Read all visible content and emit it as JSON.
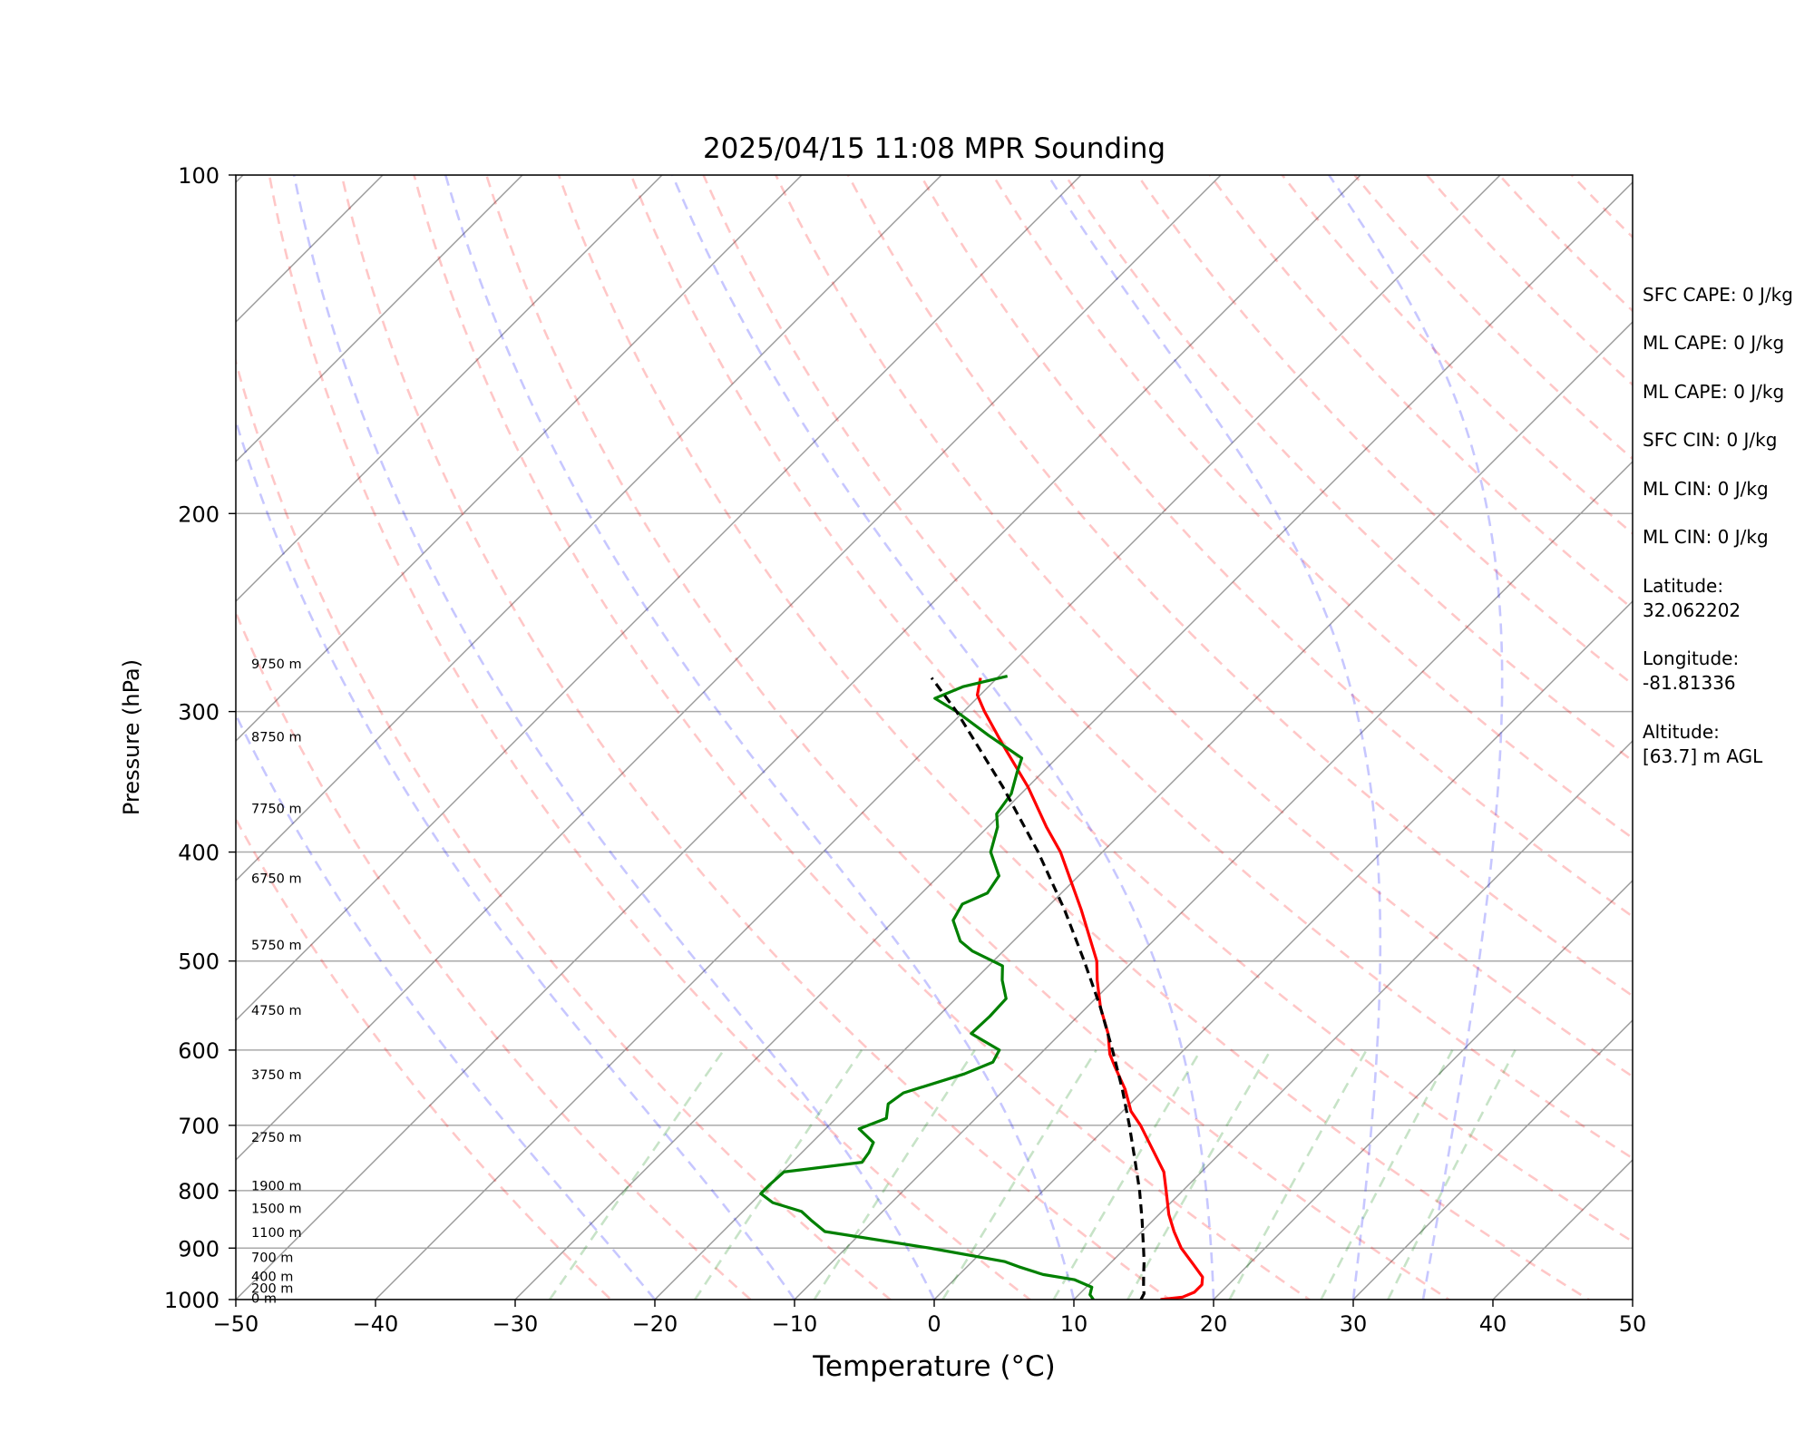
{
  "chart_data": {
    "type": "line",
    "subtype": "skew-t log-p",
    "title": "2025/04/15 11:08 MPR Sounding",
    "xlabel": "Temperature (°C)",
    "ylabel": "Pressure (hPa)",
    "xlim": [
      -50,
      50
    ],
    "ylim": [
      1000,
      100
    ],
    "yscale": "log",
    "x_ticks": [
      "−50",
      "−40",
      "−30",
      "−20",
      "−10",
      "0",
      "10",
      "20",
      "30",
      "40",
      "50"
    ],
    "y_ticks": [
      "100",
      "200",
      "300",
      "400",
      "500",
      "600",
      "700",
      "800",
      "900",
      "1000"
    ],
    "height_labels": [
      {
        "p": 997,
        "label": "0 m"
      },
      {
        "p": 977,
        "label": "200 m"
      },
      {
        "p": 954,
        "label": "400 m"
      },
      {
        "p": 917,
        "label": "700 m"
      },
      {
        "p": 872,
        "label": "1100 m"
      },
      {
        "p": 830,
        "label": "1500 m"
      },
      {
        "p": 792,
        "label": "1900 m"
      },
      {
        "p": 717,
        "label": "2750 m"
      },
      {
        "p": 631,
        "label": "3750 m"
      },
      {
        "p": 553,
        "label": "4750 m"
      },
      {
        "p": 484,
        "label": "5750 m"
      },
      {
        "p": 422,
        "label": "6750 m"
      },
      {
        "p": 366,
        "label": "7750 m"
      },
      {
        "p": 316,
        "label": "8750 m"
      },
      {
        "p": 272,
        "label": "9750 m"
      }
    ],
    "series": [
      {
        "key": "temperature",
        "color": "#ff0000",
        "points": [
          [
            1000,
            16.2
          ],
          [
            995,
            17.6
          ],
          [
            985,
            18.1
          ],
          [
            970,
            18.1
          ],
          [
            955,
            17.6
          ],
          [
            930,
            16.0
          ],
          [
            900,
            14.0
          ],
          [
            870,
            12.3
          ],
          [
            840,
            10.7
          ],
          [
            800,
            8.8
          ],
          [
            770,
            7.3
          ],
          [
            700,
            2.3
          ],
          [
            680,
            0.6
          ],
          [
            650,
            -1.4
          ],
          [
            620,
            -3.8
          ],
          [
            605,
            -5.0
          ],
          [
            580,
            -6.6
          ],
          [
            550,
            -9.0
          ],
          [
            520,
            -11.2
          ],
          [
            500,
            -12.6
          ],
          [
            450,
            -17.4
          ],
          [
            400,
            -23.0
          ],
          [
            380,
            -25.8
          ],
          [
            350,
            -30.0
          ],
          [
            320,
            -35.0
          ],
          [
            300,
            -38.5
          ],
          [
            290,
            -40.2
          ],
          [
            280,
            -41.2
          ]
        ]
      },
      {
        "key": "dewpoint",
        "color": "#008000",
        "points": [
          [
            1000,
            11.4
          ],
          [
            990,
            10.8
          ],
          [
            975,
            10.4
          ],
          [
            960,
            8.6
          ],
          [
            950,
            6.0
          ],
          [
            935,
            3.7
          ],
          [
            925,
            2.3
          ],
          [
            900,
            -4.0
          ],
          [
            870,
            -12.7
          ],
          [
            850,
            -14.5
          ],
          [
            835,
            -15.8
          ],
          [
            820,
            -18.5
          ],
          [
            805,
            -20.0
          ],
          [
            790,
            -20.0
          ],
          [
            770,
            -19.9
          ],
          [
            755,
            -15.0
          ],
          [
            740,
            -15.2
          ],
          [
            725,
            -15.6
          ],
          [
            705,
            -17.6
          ],
          [
            690,
            -16.4
          ],
          [
            670,
            -17.3
          ],
          [
            655,
            -17.0
          ],
          [
            630,
            -14.0
          ],
          [
            615,
            -12.8
          ],
          [
            600,
            -13.2
          ],
          [
            580,
            -16.4
          ],
          [
            560,
            -16.3
          ],
          [
            540,
            -16.4
          ],
          [
            520,
            -18.0
          ],
          [
            505,
            -19.0
          ],
          [
            490,
            -22.2
          ],
          [
            480,
            -23.8
          ],
          [
            460,
            -25.8
          ],
          [
            445,
            -26.3
          ],
          [
            435,
            -25.3
          ],
          [
            420,
            -25.7
          ],
          [
            400,
            -28.0
          ],
          [
            380,
            -29.3
          ],
          [
            370,
            -30.3
          ],
          [
            355,
            -30.7
          ],
          [
            340,
            -31.8
          ],
          [
            330,
            -32.5
          ],
          [
            315,
            -36.5
          ],
          [
            300,
            -40.5
          ],
          [
            292,
            -43.0
          ],
          [
            285,
            -41.8
          ],
          [
            279,
            -39.4
          ]
        ]
      },
      {
        "key": "parcel",
        "color": "#000000",
        "style": "dashed",
        "points": [
          [
            1000,
            14.8
          ],
          [
            988,
            14.6
          ],
          [
            975,
            14.1
          ],
          [
            950,
            13.2
          ],
          [
            925,
            12.3
          ],
          [
            900,
            11.3
          ],
          [
            850,
            9.2
          ],
          [
            800,
            6.9
          ],
          [
            750,
            4.3
          ],
          [
            700,
            1.5
          ],
          [
            650,
            -1.6
          ],
          [
            600,
            -5.1
          ],
          [
            550,
            -9.0
          ],
          [
            500,
            -13.5
          ],
          [
            450,
            -18.6
          ],
          [
            400,
            -24.6
          ],
          [
            350,
            -31.8
          ],
          [
            300,
            -40.5
          ],
          [
            280,
            -44.7
          ]
        ]
      }
    ],
    "annotations": [
      "SFC CAPE: 0 J/kg",
      "ML CAPE: 0 J/kg",
      "ML CAPE: 0 J/kg",
      "SFC CIN: 0 J/kg",
      "ML CIN: 0 J/kg",
      "ML CIN: 0 J/kg",
      "Latitude:",
      "32.062202",
      "Longitude:",
      "-81.81336",
      "Altitude:",
      "[63.7] m AGL"
    ],
    "background_lines": {
      "isotherms_c": [
        -130,
        -120,
        -110,
        -100,
        -90,
        -80,
        -70,
        -60,
        -50,
        -40,
        -30,
        -20,
        -10,
        0,
        10,
        20,
        30,
        40,
        50
      ],
      "dry_adiabats_thetaK": [
        250,
        260,
        270,
        280,
        290,
        300,
        310,
        320,
        330,
        340,
        350,
        360,
        370,
        380,
        390,
        400,
        410,
        420,
        430,
        440,
        450,
        460,
        470,
        480,
        490,
        500,
        510,
        520,
        530,
        540
      ],
      "moist_adiabats_c": [
        -20,
        -10,
        0,
        10,
        20,
        30,
        35
      ],
      "mixing_ratios_gkg": [
        0.4,
        1,
        2,
        4,
        7,
        10,
        16,
        24,
        32
      ]
    },
    "colors": {
      "grid": "#aaaaaa",
      "isotherm": "#999999",
      "dry_adiabat": "#ff0000",
      "moist_adiabat": "#0000ff",
      "mixing_ratio": "#008000"
    }
  }
}
